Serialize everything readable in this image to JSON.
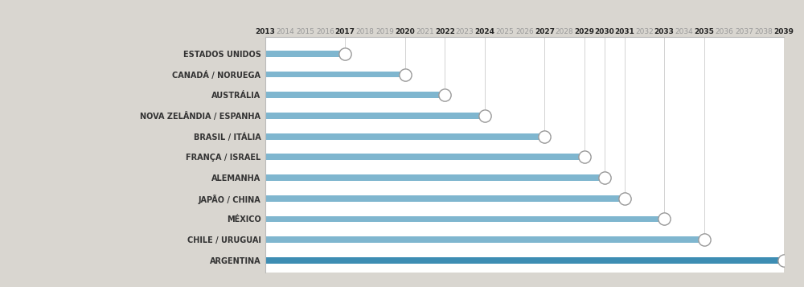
{
  "chart_data": {
    "type": "bar",
    "orientation": "horizontal",
    "categories": [
      "ESTADOS UNIDOS",
      "CANADÁ / NORUEGA",
      "AUSTRÁLIA",
      "NOVA ZELÂNDIA / ESPANHA",
      "BRASIL / ITÁLIA",
      "FRANÇA / ISRAEL",
      "ALEMANHA",
      "JAPÃO / CHINA",
      "MÉXICO",
      "CHILE / URUGUAI",
      "ARGENTINA"
    ],
    "values": [
      2017,
      2020,
      2022,
      2024,
      2027,
      2029,
      2030,
      2031,
      2033,
      2035,
      2039
    ],
    "colors": [
      "#7fb6cf",
      "#7fb6cf",
      "#7fb6cf",
      "#7fb6cf",
      "#7fb6cf",
      "#7fb6cf",
      "#7fb6cf",
      "#7fb6cf",
      "#7fb6cf",
      "#7fb6cf",
      "#3d8db3"
    ],
    "xlim": [
      2013,
      2039
    ],
    "xticks": [
      2013,
      2014,
      2015,
      2016,
      2017,
      2018,
      2019,
      2020,
      2021,
      2022,
      2023,
      2024,
      2025,
      2026,
      2027,
      2028,
      2029,
      2030,
      2031,
      2032,
      2033,
      2034,
      2035,
      2036,
      2037,
      2038,
      2039
    ],
    "grid": false
  }
}
